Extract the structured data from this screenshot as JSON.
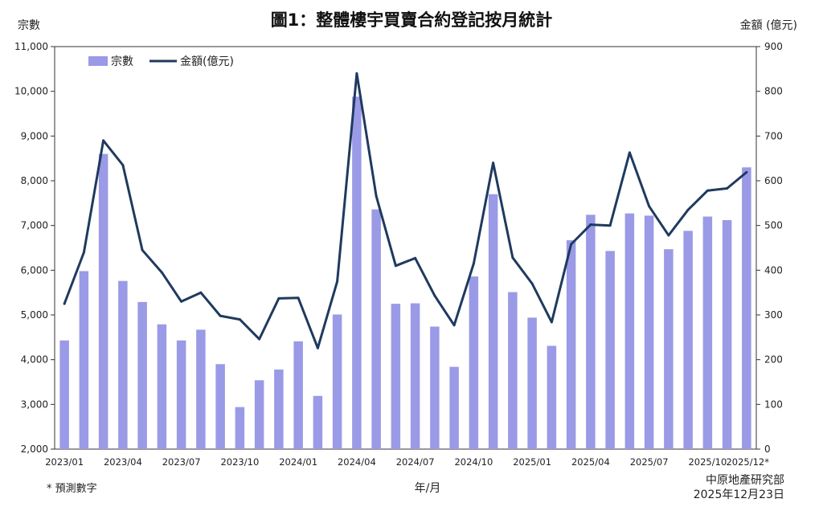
{
  "chart_data": {
    "type": "bar",
    "title": "圖1：整體樓宇買賣合約登記按月統計",
    "ylabel_left": "宗數",
    "ylabel_right": "金額 (億元)",
    "xlabel": "年/月",
    "footnote": "* 預測數字",
    "source": "中原地產研究部",
    "date": "2025年12月23日",
    "ylim_left": [
      2000,
      11000
    ],
    "ylim_right": [
      0,
      900
    ],
    "yticks_left": [
      "2,000",
      "3,000",
      "4,000",
      "5,000",
      "6,000",
      "7,000",
      "8,000",
      "9,000",
      "10,000",
      "11,000"
    ],
    "yticks_right": [
      "0",
      "100",
      "200",
      "300",
      "400",
      "500",
      "600",
      "700",
      "800",
      "900"
    ],
    "xtick_labels": [
      {
        "index": 0,
        "label": "2023/01"
      },
      {
        "index": 3,
        "label": "2023/04"
      },
      {
        "index": 6,
        "label": "2023/07"
      },
      {
        "index": 9,
        "label": "2023/10"
      },
      {
        "index": 12,
        "label": "2024/01"
      },
      {
        "index": 15,
        "label": "2024/04"
      },
      {
        "index": 18,
        "label": "2024/07"
      },
      {
        "index": 21,
        "label": "2024/10"
      },
      {
        "index": 24,
        "label": "2025/01"
      },
      {
        "index": 27,
        "label": "2025/04"
      },
      {
        "index": 30,
        "label": "2025/07"
      },
      {
        "index": 33,
        "label": "2025/10"
      },
      {
        "index": 35,
        "label": "2025/12*"
      }
    ],
    "categories": [
      "2023/01",
      "2023/02",
      "2023/03",
      "2023/04",
      "2023/05",
      "2023/06",
      "2023/07",
      "2023/08",
      "2023/09",
      "2023/10",
      "2023/11",
      "2023/12",
      "2024/01",
      "2024/02",
      "2024/03",
      "2024/04",
      "2024/05",
      "2024/06",
      "2024/07",
      "2024/08",
      "2024/09",
      "2024/10",
      "2024/11",
      "2024/12",
      "2025/01",
      "2025/02",
      "2025/03",
      "2025/04",
      "2025/05",
      "2025/06",
      "2025/07",
      "2025/08",
      "2025/09",
      "2025/10",
      "2025/11",
      "2025/12*"
    ],
    "series": [
      {
        "name": "宗數",
        "type": "bar",
        "axis": "left",
        "color": "#9a9ae6",
        "values": [
          4430,
          5980,
          8600,
          5760,
          5290,
          4790,
          4430,
          4670,
          3900,
          2940,
          3540,
          3780,
          4410,
          3190,
          5010,
          9880,
          7360,
          5250,
          5260,
          4740,
          3840,
          5860,
          7700,
          5510,
          4940,
          4310,
          6670,
          7240,
          6430,
          7270,
          7220,
          6470,
          6880,
          7200,
          7120,
          8300
        ]
      },
      {
        "name": "金額(億元)",
        "type": "line",
        "axis": "right",
        "color": "#1f3a5f",
        "values": [
          325,
          440,
          690,
          635,
          445,
          395,
          330,
          350,
          298,
          290,
          246,
          337,
          338,
          226,
          375,
          840,
          566,
          410,
          427,
          343,
          277,
          415,
          640,
          428,
          370,
          284,
          458,
          502,
          500,
          663,
          543,
          478,
          535,
          578,
          583,
          619
        ]
      }
    ],
    "legend_position": "top-left",
    "grid": false
  }
}
